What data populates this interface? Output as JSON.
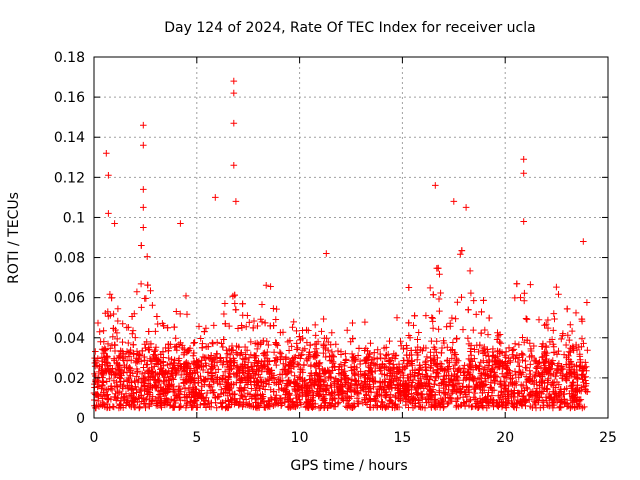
{
  "chart_data": {
    "type": "scatter",
    "title": "Day 124 of 2024, Rate Of TEC Index for receiver ucla",
    "xlabel": "GPS time / hours",
    "ylabel": "ROTI / TECUs",
    "xlim": [
      0,
      25
    ],
    "ylim": [
      0,
      0.18
    ],
    "x_ticks": [
      0,
      5,
      10,
      15,
      20,
      25
    ],
    "x_tick_labels": [
      "0",
      "5",
      "10",
      "15",
      "20",
      "25"
    ],
    "y_ticks": [
      0,
      0.02,
      0.04,
      0.06,
      0.08,
      0.1,
      0.12,
      0.14,
      0.16,
      0.18
    ],
    "y_tick_labels": [
      "0",
      "0.02",
      "0.04",
      "0.06",
      "0.08",
      "0.1",
      "0.12",
      "0.14",
      "0.16",
      "0.18"
    ],
    "grid": true,
    "marker": "plus",
    "color": "#ff0000",
    "series": [
      {
        "name": "ROTI",
        "x_range": [
          0,
          24
        ],
        "baseline_band": [
          0.005,
          0.04
        ],
        "notable_points": [
          {
            "x": 0.6,
            "y": 0.132
          },
          {
            "x": 0.7,
            "y": 0.121
          },
          {
            "x": 0.7,
            "y": 0.102
          },
          {
            "x": 1.0,
            "y": 0.097
          },
          {
            "x": 2.4,
            "y": 0.146
          },
          {
            "x": 2.4,
            "y": 0.136
          },
          {
            "x": 2.4,
            "y": 0.114
          },
          {
            "x": 2.4,
            "y": 0.105
          },
          {
            "x": 2.4,
            "y": 0.095
          },
          {
            "x": 4.2,
            "y": 0.097
          },
          {
            "x": 5.9,
            "y": 0.11
          },
          {
            "x": 6.8,
            "y": 0.168
          },
          {
            "x": 6.8,
            "y": 0.162
          },
          {
            "x": 6.8,
            "y": 0.147
          },
          {
            "x": 6.8,
            "y": 0.126
          },
          {
            "x": 6.9,
            "y": 0.108
          },
          {
            "x": 11.3,
            "y": 0.082
          },
          {
            "x": 16.6,
            "y": 0.116
          },
          {
            "x": 17.5,
            "y": 0.108
          },
          {
            "x": 18.1,
            "y": 0.105
          },
          {
            "x": 20.9,
            "y": 0.129
          },
          {
            "x": 20.9,
            "y": 0.122
          },
          {
            "x": 20.9,
            "y": 0.098
          },
          {
            "x": 23.8,
            "y": 0.088
          }
        ]
      }
    ]
  }
}
